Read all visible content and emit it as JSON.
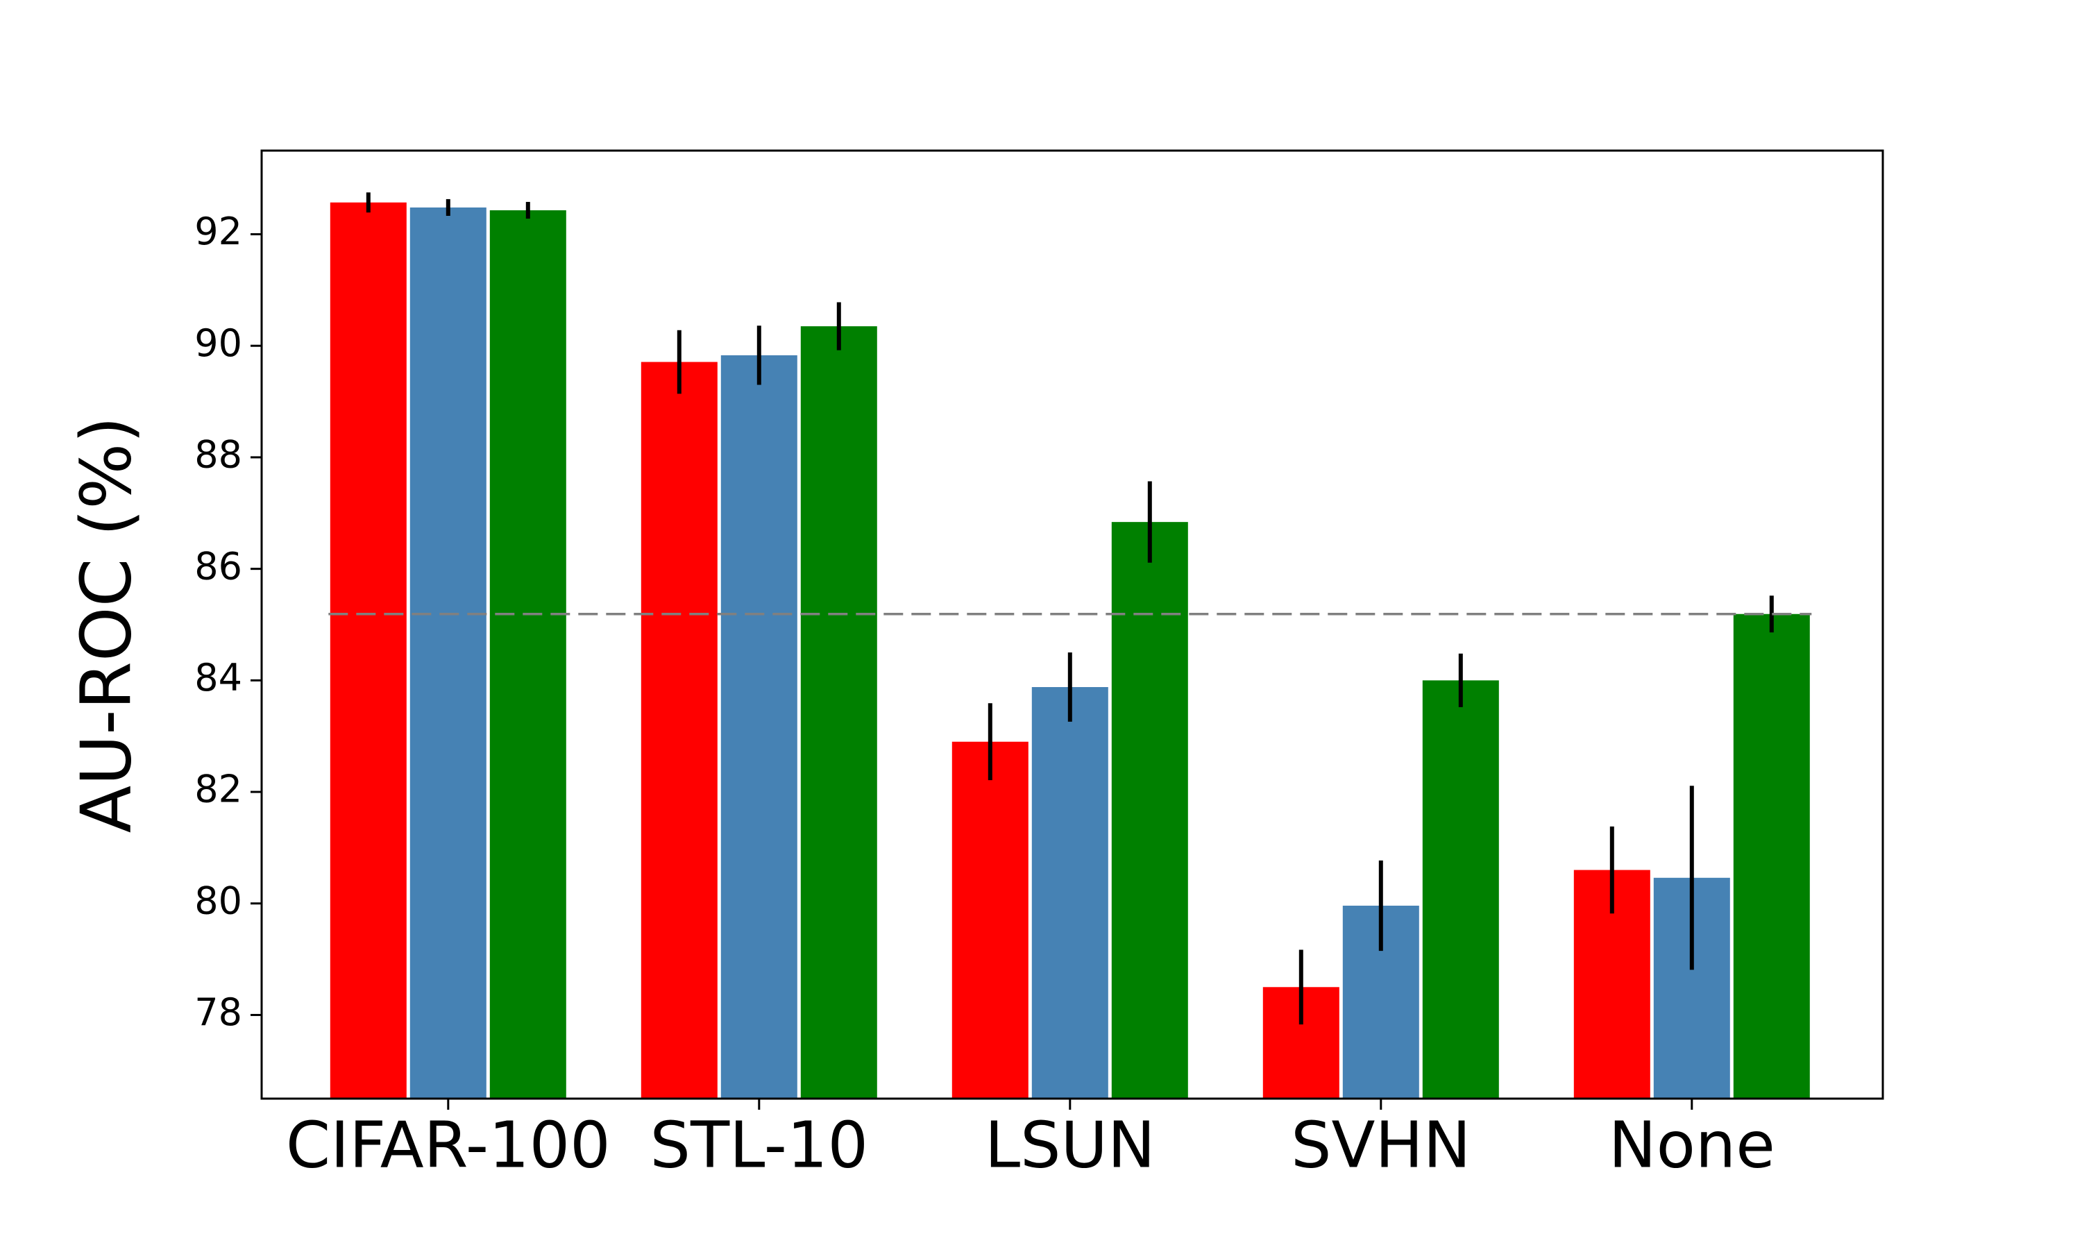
{
  "chart_data": {
    "type": "bar",
    "ylabel": "AU-ROC (%)",
    "categories": [
      "CIFAR-100",
      "STL-10",
      "LSUN",
      "SVHN",
      "None"
    ],
    "series": [
      {
        "color": "#ff0000",
        "values": [
          92.57,
          89.71,
          82.9,
          78.5,
          80.6
        ],
        "errors": [
          0.18,
          0.57,
          0.69,
          0.67,
          0.78
        ]
      },
      {
        "color": "#4682b4",
        "values": [
          92.48,
          89.83,
          83.88,
          79.96,
          80.46
        ],
        "errors": [
          0.15,
          0.53,
          0.62,
          0.81,
          1.65
        ]
      },
      {
        "color": "#008000",
        "values": [
          92.43,
          90.35,
          86.84,
          84.0,
          85.19
        ],
        "errors": [
          0.15,
          0.43,
          0.73,
          0.48,
          0.33
        ]
      }
    ],
    "reference_line": 85.19,
    "ylim": [
      76.5,
      93.5
    ],
    "yticks": [
      78,
      80,
      82,
      84,
      86,
      88,
      90,
      92
    ]
  }
}
